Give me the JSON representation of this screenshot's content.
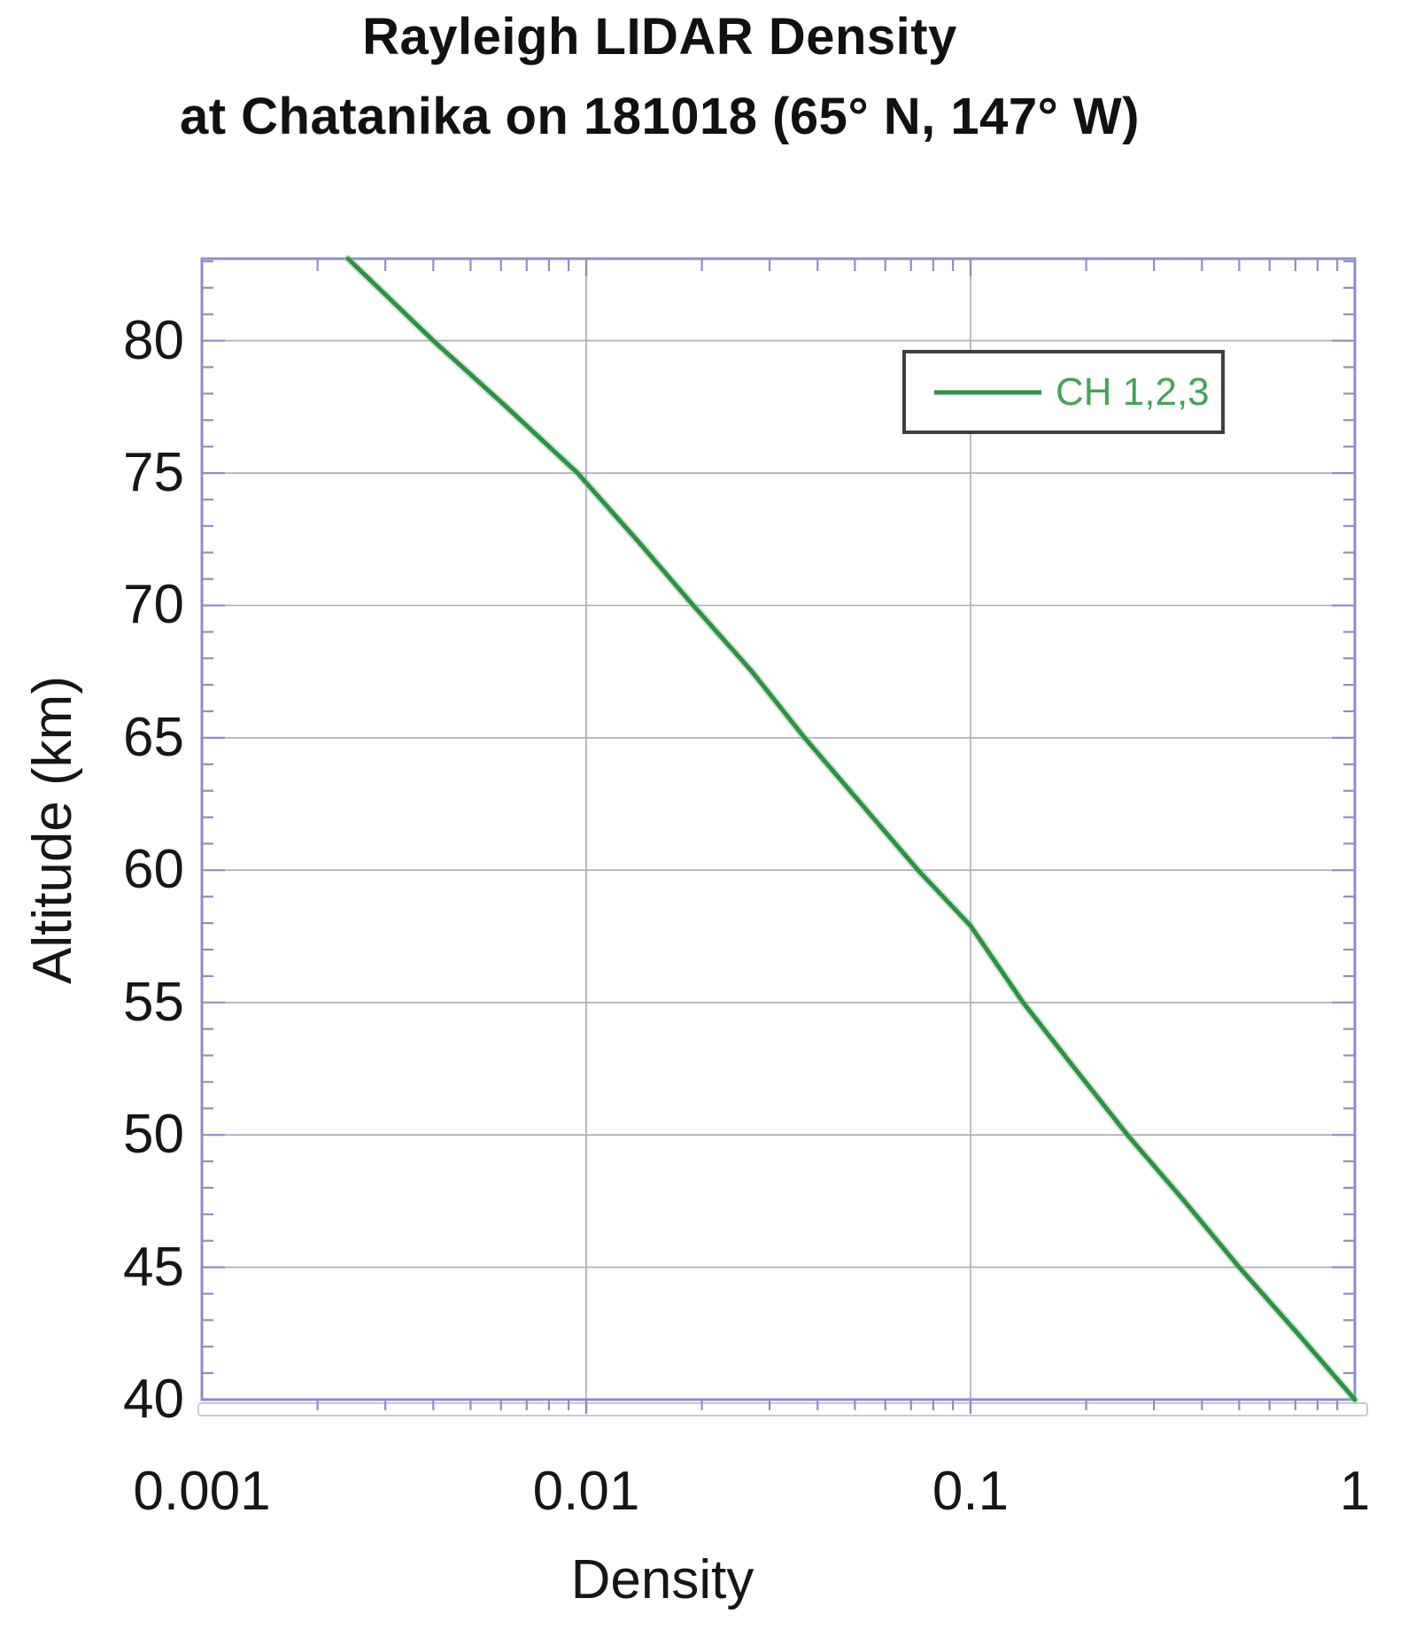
{
  "title": {
    "line1": "Rayleigh LIDAR Density",
    "line2": "at Chatanika on 181018 (65° N, 147° W)"
  },
  "axes": {
    "x_title": "Density",
    "y_title": "Altitude (km)"
  },
  "legend": {
    "label": "CH 1,2,3"
  },
  "colors": {
    "curve": "#2f9144",
    "curve_halo": "#8fce9d",
    "legend_text": "#45a25b",
    "axis": "#8d8ec6",
    "grid": "#a9a9bd",
    "underline": "#c9c9dd",
    "text": "#161616",
    "legend_border": "#3f3f3f"
  },
  "chart_data": {
    "type": "line",
    "title": "Rayleigh LIDAR Density at Chatanika on 181018 (65° N, 147° W)",
    "xlabel": "Density",
    "ylabel": "Altitude (km)",
    "x_scale": "log",
    "xlim": [
      0.001,
      1
    ],
    "ylim": [
      40,
      83.1
    ],
    "x_ticks": [
      0.001,
      0.01,
      0.1,
      1
    ],
    "x_tick_labels": [
      "0.001",
      "0.01",
      "0.1",
      "1"
    ],
    "y_ticks": [
      40,
      45,
      50,
      55,
      60,
      65,
      70,
      75,
      80
    ],
    "y_minor_tick_step": 1,
    "x_minor_ticks": "log-decade-2-to-9",
    "grid": true,
    "legend_position": "top-right",
    "series": [
      {
        "name": "CH 1,2,3",
        "color": "#2f9144",
        "points_density_altitude": [
          [
            0.0024,
            83.1
          ],
          [
            0.004,
            80
          ],
          [
            0.0062,
            77.5
          ],
          [
            0.0095,
            75
          ],
          [
            0.0135,
            72.5
          ],
          [
            0.019,
            70
          ],
          [
            0.027,
            67.5
          ],
          [
            0.037,
            65
          ],
          [
            0.052,
            62.5
          ],
          [
            0.073,
            60
          ],
          [
            0.1,
            57.9
          ],
          [
            0.137,
            55
          ],
          [
            0.187,
            52.5
          ],
          [
            0.256,
            50
          ],
          [
            0.36,
            47.5
          ],
          [
            0.5,
            45
          ],
          [
            0.71,
            42.5
          ],
          [
            1.0,
            40
          ]
        ]
      }
    ]
  }
}
